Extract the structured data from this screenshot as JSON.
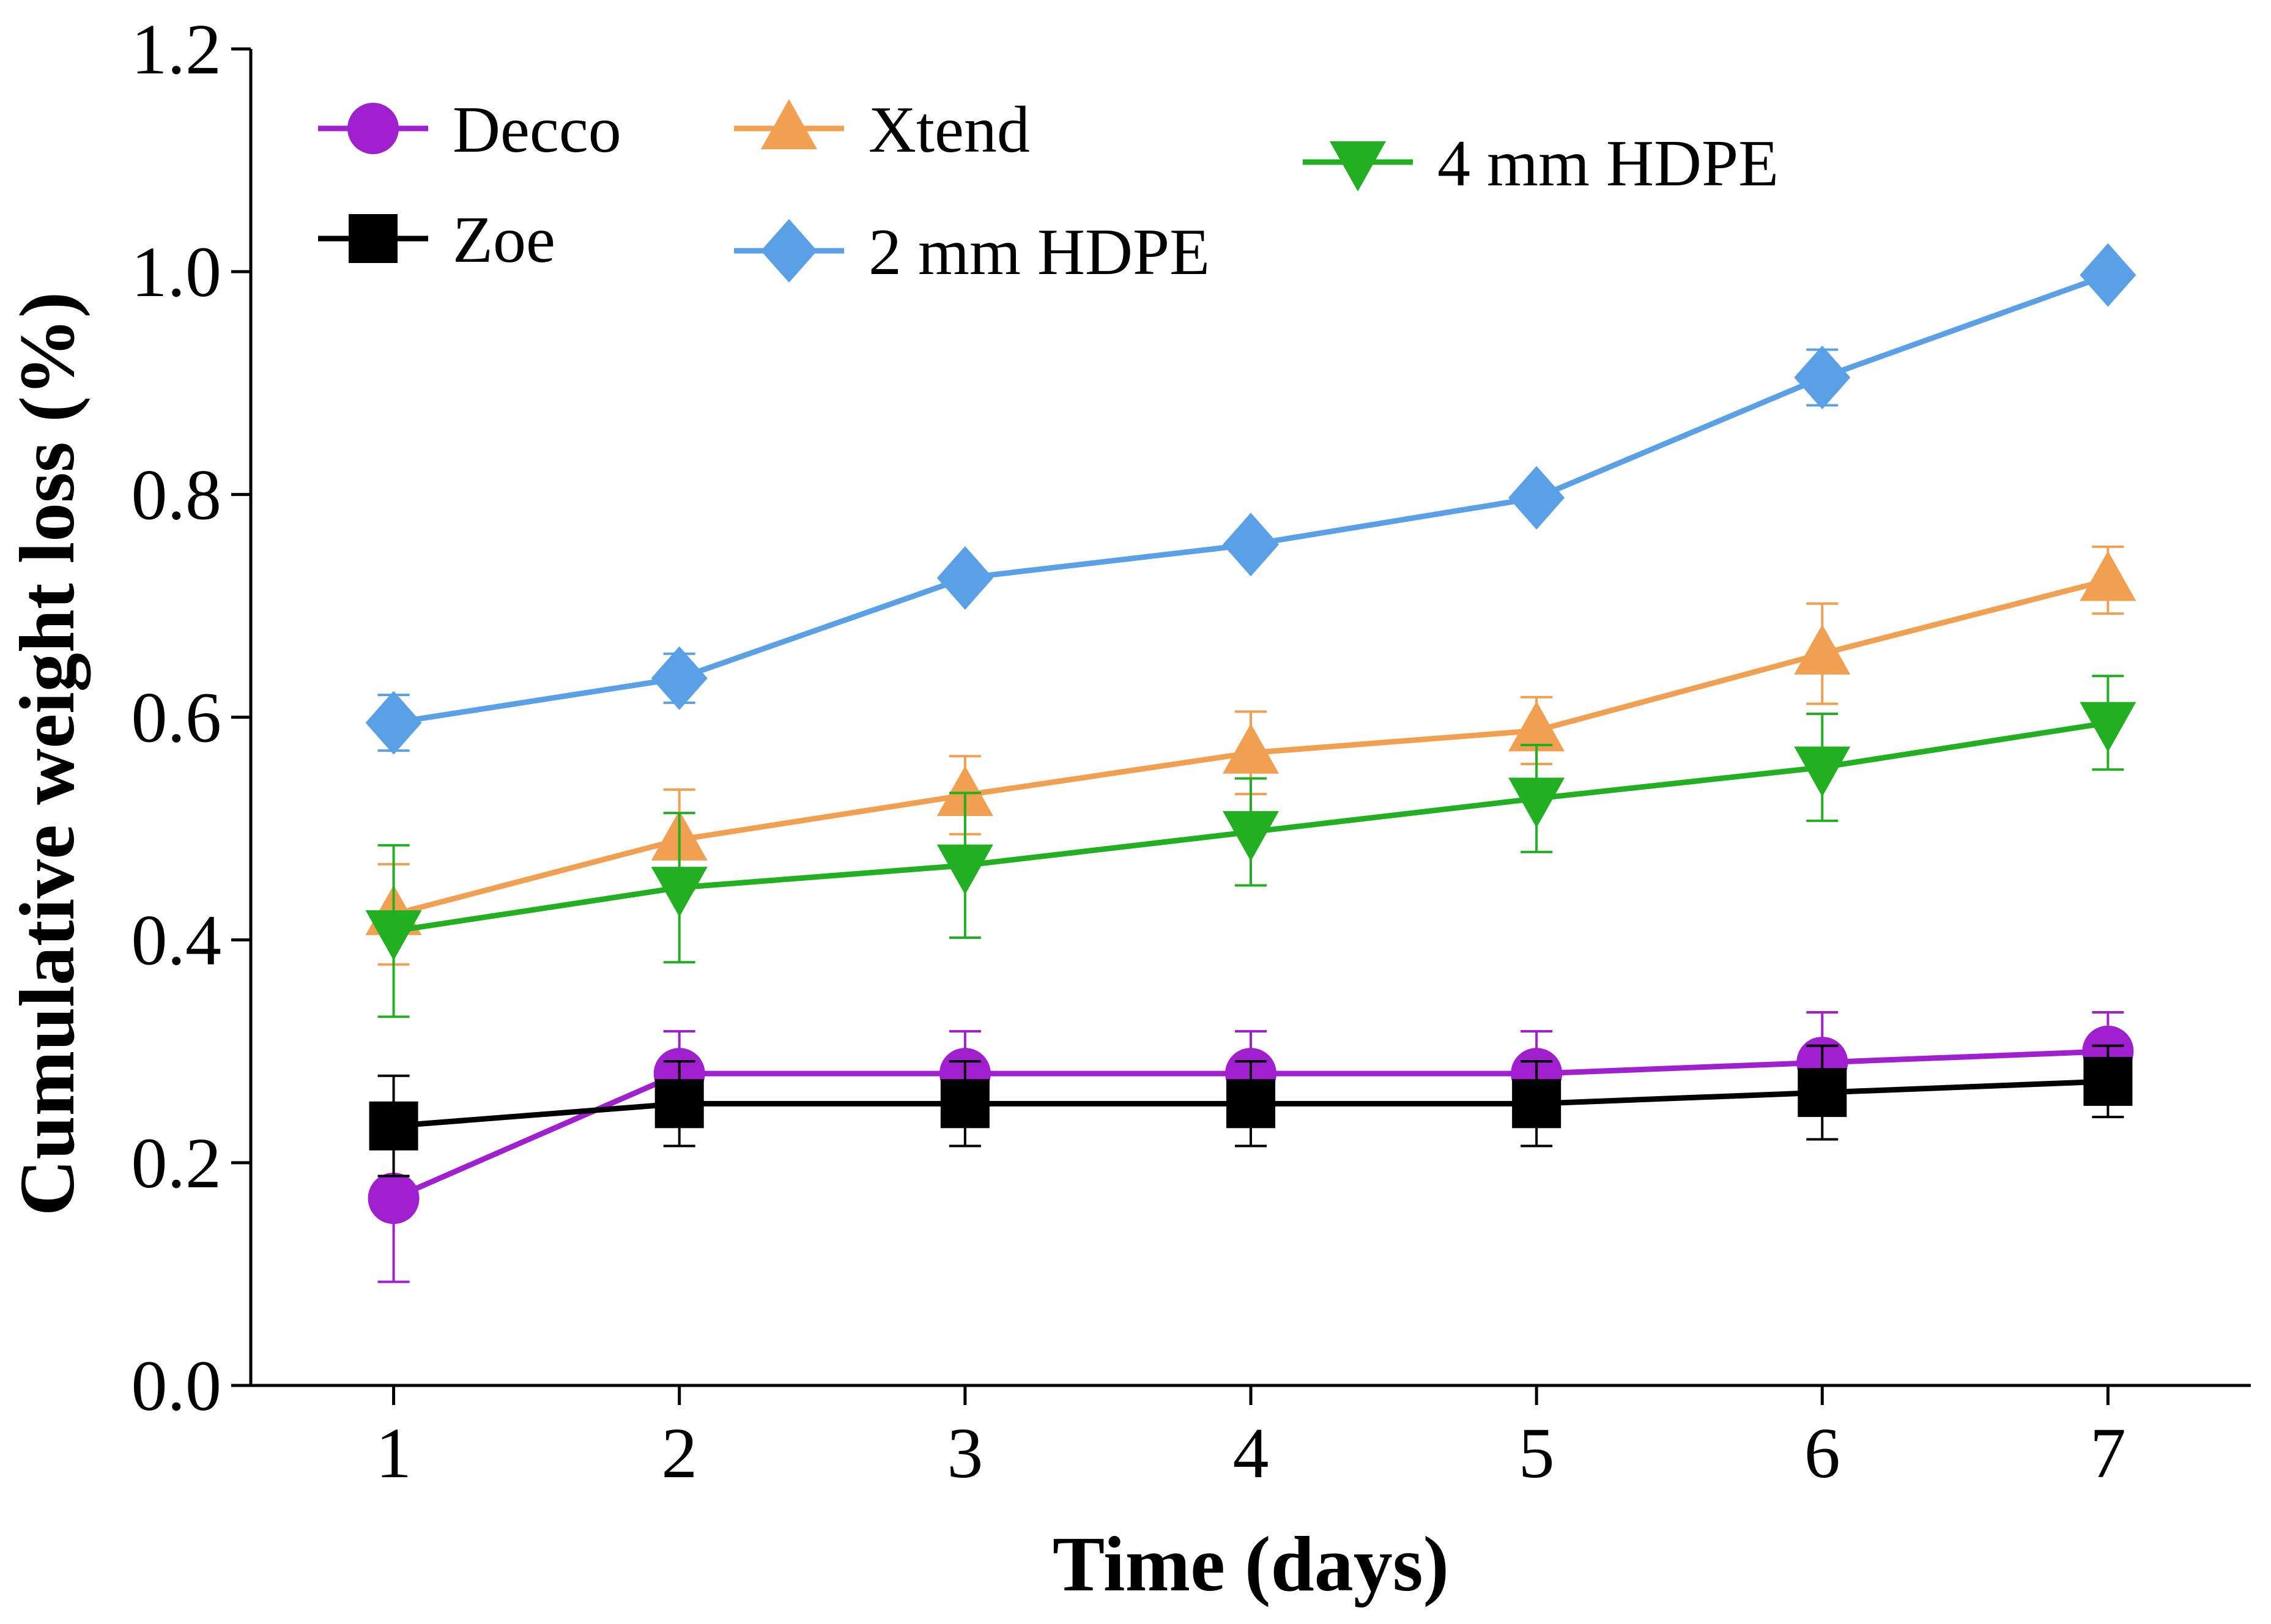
{
  "chart_data": {
    "type": "line",
    "xlabel": "Time (days)",
    "ylabel": "Cumulative weight loss (%)",
    "x": [
      1,
      2,
      3,
      4,
      5,
      6,
      7
    ],
    "xlim": [
      0.5,
      7.5
    ],
    "ylim": [
      0.0,
      1.2
    ],
    "xticks": [
      "1",
      "2",
      "3",
      "4",
      "5",
      "6",
      "7"
    ],
    "yticks": [
      "0.0",
      "0.2",
      "0.4",
      "0.6",
      "0.8",
      "1.0",
      "1.2"
    ],
    "grid": false,
    "legend_position": "top-left",
    "series": [
      {
        "name": "Decco",
        "color": "#a020d0",
        "marker": "circle",
        "values": [
          0.168,
          0.28,
          0.28,
          0.28,
          0.28,
          0.29,
          0.3
        ],
        "errors": [
          0.075,
          0.038,
          0.038,
          0.038,
          0.038,
          0.045,
          0.035
        ]
      },
      {
        "name": "Zoe",
        "color": "#000000",
        "marker": "square",
        "values": [
          0.233,
          0.253,
          0.253,
          0.253,
          0.253,
          0.263,
          0.273
        ],
        "errors": [
          0.045,
          0.038,
          0.038,
          0.038,
          0.038,
          0.042,
          0.032
        ]
      },
      {
        "name": "Xtend",
        "color": "#f0a050",
        "marker": "triangle-up",
        "values": [
          0.423,
          0.49,
          0.53,
          0.568,
          0.588,
          0.657,
          0.723
        ],
        "errors": [
          0.045,
          0.045,
          0.035,
          0.037,
          0.03,
          0.045,
          0.03
        ]
      },
      {
        "name": "2 mm HDPE",
        "color": "#5aa0e6",
        "marker": "diamond",
        "values": [
          0.595,
          0.635,
          0.725,
          0.755,
          0.797,
          0.905,
          0.997
        ],
        "errors": [
          0.025,
          0.022,
          0.0,
          0.0,
          0.0,
          0.025,
          0.0
        ]
      },
      {
        "name": "4 mm HDPE",
        "color": "#22b022",
        "marker": "triangle-down",
        "values": [
          0.408,
          0.447,
          0.467,
          0.497,
          0.527,
          0.555,
          0.595
        ],
        "errors": [
          0.077,
          0.067,
          0.065,
          0.048,
          0.048,
          0.048,
          0.042
        ]
      }
    ]
  }
}
